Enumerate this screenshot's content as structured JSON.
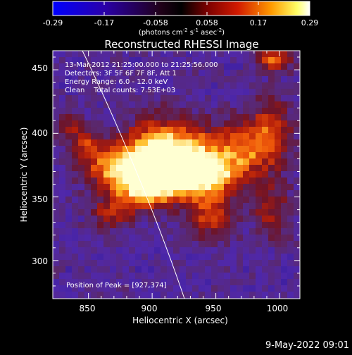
{
  "colorbar": {
    "ticks": [
      "-0.29",
      "-0.17",
      "-0.058",
      "0.058",
      "0.17",
      "0.29"
    ],
    "unit_parts": {
      "open": "(photons cm",
      "exp1": "-2",
      "s": " s",
      "exp2": "-1",
      "asec": " asec",
      "exp3": "-2",
      "close": ")"
    }
  },
  "image": {
    "title": "Reconstructed RHESSI Image",
    "info_lines": [
      "13-Mar-2012 21:25:00.000 to 21:25:56.000",
      "Detectors: 3F 5F 6F 7F 8F, Att 1",
      "Energy Range: 6.0 - 12.0 keV",
      "Clean    Total counts: 7.53E+03"
    ],
    "peak_label": "Position of Peak = [927,374]",
    "peak": {
      "x": 927,
      "y": 374
    }
  },
  "axes": {
    "xlabel": "Heliocentric X (arcsec)",
    "ylabel": "Heliocentric Y (arcsec)",
    "x_range": [
      822,
      1016
    ],
    "y_range": [
      270,
      465
    ],
    "x_ticks": [
      "850",
      "900",
      "950",
      "1000"
    ],
    "y_ticks": [
      "300",
      "350",
      "400",
      "450"
    ]
  },
  "footer": {
    "timestamp": "9-May-2022 09:01"
  },
  "colors": {
    "background": "#000000",
    "limb_line": "#ffffff",
    "colorbar_low": "#0000ff",
    "colorbar_mid": "#000000",
    "colorbar_high": "#ffffff"
  }
}
